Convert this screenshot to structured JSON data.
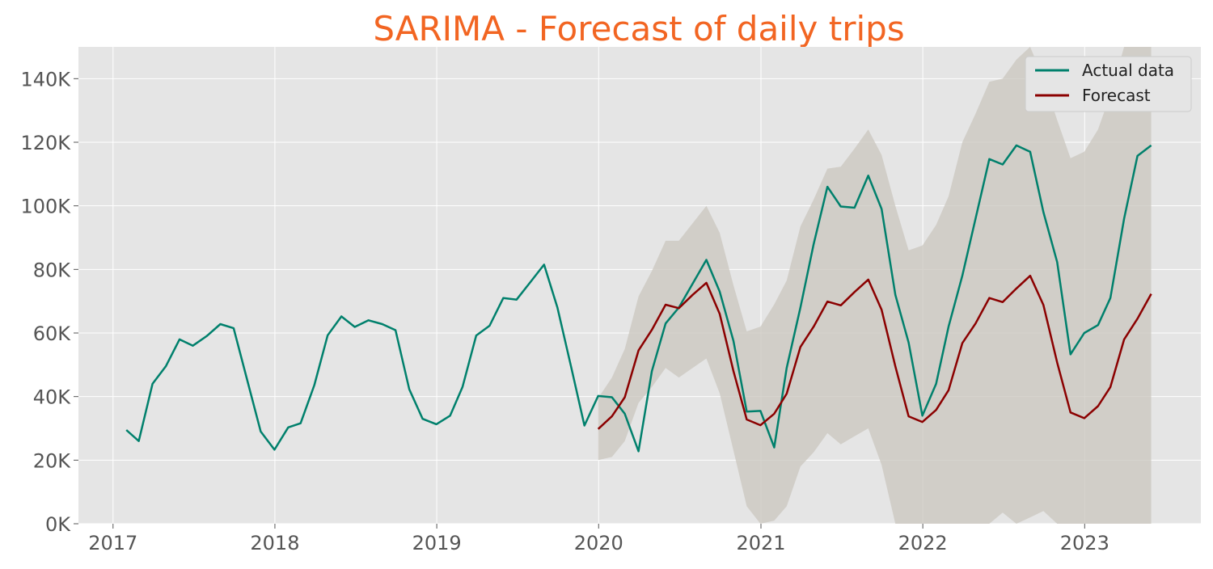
{
  "chart_data": {
    "type": "line",
    "title": "SARIMA - Forecast of daily trips",
    "title_color": "#F26522",
    "xlabel": "",
    "ylabel": "",
    "x_ticks": [
      "2017",
      "2018",
      "2019",
      "2020",
      "2021",
      "2022",
      "2023"
    ],
    "y_ticks": [
      "0K",
      "20K",
      "40K",
      "60K",
      "80K",
      "100K",
      "120K",
      "140K"
    ],
    "y_tick_values": [
      0,
      20000,
      40000,
      60000,
      80000,
      100000,
      120000,
      140000
    ],
    "xlim": [
      "2016-10-15",
      "2023-09-20"
    ],
    "ylim": [
      0,
      150000
    ],
    "grid": true,
    "background_color": "#E5E5E5",
    "legend_position": "top-right",
    "series": [
      {
        "name": "Actual data",
        "color": "#00806C",
        "x": [
          "2017-01-31",
          "2017-02-28",
          "2017-03-31",
          "2017-04-30",
          "2017-05-31",
          "2017-06-30",
          "2017-07-31",
          "2017-08-31",
          "2017-09-30",
          "2017-10-31",
          "2017-11-30",
          "2017-12-31",
          "2018-01-31",
          "2018-02-28",
          "2018-03-31",
          "2018-04-30",
          "2018-05-31",
          "2018-06-30",
          "2018-07-31",
          "2018-08-31",
          "2018-09-30",
          "2018-10-31",
          "2018-11-30",
          "2018-12-31",
          "2019-01-31",
          "2019-02-28",
          "2019-03-31",
          "2019-04-30",
          "2019-05-31",
          "2019-06-30",
          "2019-07-31",
          "2019-08-31",
          "2019-09-30",
          "2019-10-31",
          "2019-11-30",
          "2019-12-31",
          "2020-01-31",
          "2020-02-29",
          "2020-03-31",
          "2020-04-30",
          "2020-05-31",
          "2020-06-30",
          "2020-07-31",
          "2020-08-31",
          "2020-09-30",
          "2020-10-31",
          "2020-11-30",
          "2020-12-31",
          "2021-01-31",
          "2021-02-28",
          "2021-03-31",
          "2021-04-30",
          "2021-05-31",
          "2021-06-30",
          "2021-07-31",
          "2021-08-31",
          "2021-09-30",
          "2021-10-31",
          "2021-11-30",
          "2021-12-31",
          "2022-01-31",
          "2022-02-28",
          "2022-03-31",
          "2022-04-30",
          "2022-05-31",
          "2022-06-30",
          "2022-07-31",
          "2022-08-31",
          "2022-09-30",
          "2022-10-31",
          "2022-11-30",
          "2022-12-31",
          "2023-01-31",
          "2023-02-28",
          "2023-03-31",
          "2023-04-30",
          "2023-05-31"
        ],
        "values": [
          29500,
          26000,
          44000,
          49500,
          58000,
          56000,
          59000,
          62800,
          61500,
          45000,
          29000,
          23300,
          30300,
          31600,
          43600,
          59300,
          65200,
          61900,
          64000,
          62800,
          60900,
          42300,
          33000,
          31300,
          34000,
          43000,
          59200,
          62300,
          71000,
          70500,
          76000,
          81500,
          68000,
          49300,
          30900,
          40200,
          39800,
          34600,
          22800,
          48000,
          63000,
          68000,
          75500,
          83000,
          73000,
          57500,
          35300,
          35500,
          24000,
          49000,
          68000,
          88000,
          106000,
          99800,
          99400,
          109500,
          99000,
          72000,
          57000,
          34000,
          44000,
          62000,
          78000,
          96000,
          114700,
          113000,
          119000,
          117000,
          98000,
          82300,
          53300,
          60000,
          62500,
          71000,
          96000,
          115700,
          119000
        ]
      },
      {
        "name": "Forecast",
        "color": "#8B0000",
        "x": [
          "2019-12-31",
          "2020-01-31",
          "2020-02-29",
          "2020-03-31",
          "2020-04-30",
          "2020-05-31",
          "2020-06-30",
          "2020-07-31",
          "2020-08-31",
          "2020-09-30",
          "2020-10-31",
          "2020-11-30",
          "2020-12-31",
          "2021-01-31",
          "2021-02-28",
          "2021-03-31",
          "2021-04-30",
          "2021-05-31",
          "2021-06-30",
          "2021-07-31",
          "2021-08-31",
          "2021-09-30",
          "2021-10-31",
          "2021-11-30",
          "2021-12-31",
          "2022-01-31",
          "2022-02-28",
          "2022-03-31",
          "2022-04-30",
          "2022-05-31",
          "2022-06-30",
          "2022-07-31",
          "2022-08-31",
          "2022-09-30",
          "2022-10-31",
          "2022-11-30",
          "2022-12-31",
          "2023-01-31",
          "2023-02-28",
          "2023-03-31",
          "2023-04-30",
          "2023-05-31"
        ],
        "values": [
          29800,
          33800,
          39800,
          54500,
          61000,
          68900,
          67800,
          72000,
          75800,
          66000,
          48000,
          32800,
          31000,
          34600,
          40900,
          55600,
          62000,
          69900,
          68700,
          72900,
          76800,
          67300,
          49500,
          33800,
          32000,
          35800,
          42000,
          56800,
          63000,
          71000,
          69700,
          74000,
          78000,
          68800,
          50700,
          35000,
          33200,
          37000,
          43000,
          58000,
          64500,
          72300
        ]
      }
    ],
    "confidence_band": {
      "color": "#C9C6BD",
      "x": [
        "2019-12-31",
        "2020-01-31",
        "2020-02-29",
        "2020-03-31",
        "2020-04-30",
        "2020-05-31",
        "2020-06-30",
        "2020-07-31",
        "2020-08-31",
        "2020-09-30",
        "2020-10-31",
        "2020-11-30",
        "2020-12-31",
        "2021-01-31",
        "2021-02-28",
        "2021-03-31",
        "2021-04-30",
        "2021-05-31",
        "2021-06-30",
        "2021-07-31",
        "2021-08-31",
        "2021-09-30",
        "2021-10-31",
        "2021-11-30",
        "2021-12-31",
        "2022-01-31",
        "2022-02-28",
        "2022-03-31",
        "2022-04-30",
        "2022-05-31",
        "2022-06-30",
        "2022-07-31",
        "2022-08-31",
        "2022-09-30",
        "2022-10-31",
        "2022-11-30",
        "2022-12-31",
        "2023-01-31",
        "2023-02-28",
        "2023-03-31",
        "2023-04-30",
        "2023-05-31"
      ],
      "lower": [
        20000,
        21000,
        26000,
        38000,
        43000,
        49000,
        46000,
        49000,
        52000,
        41000,
        23000,
        5500,
        0,
        1000,
        5500,
        18000,
        22500,
        28500,
        25000,
        27500,
        30000,
        18500,
        0,
        0,
        0,
        0,
        0,
        0,
        0,
        0,
        3500,
        0,
        2000,
        4000,
        0,
        0,
        0,
        0,
        0,
        0,
        0,
        0
      ],
      "upper": [
        39500,
        46000,
        55000,
        71500,
        79500,
        89000,
        89000,
        94500,
        100000,
        91500,
        75000,
        60500,
        62000,
        69000,
        76500,
        93500,
        102000,
        111700,
        112300,
        118000,
        124000,
        116000,
        100000,
        86000,
        87500,
        94000,
        103000,
        120000,
        129000,
        139000,
        140000,
        146000,
        152000,
        140000,
        127000,
        115000,
        117000,
        124000,
        135000,
        150000,
        150000,
        150000
      ]
    }
  }
}
